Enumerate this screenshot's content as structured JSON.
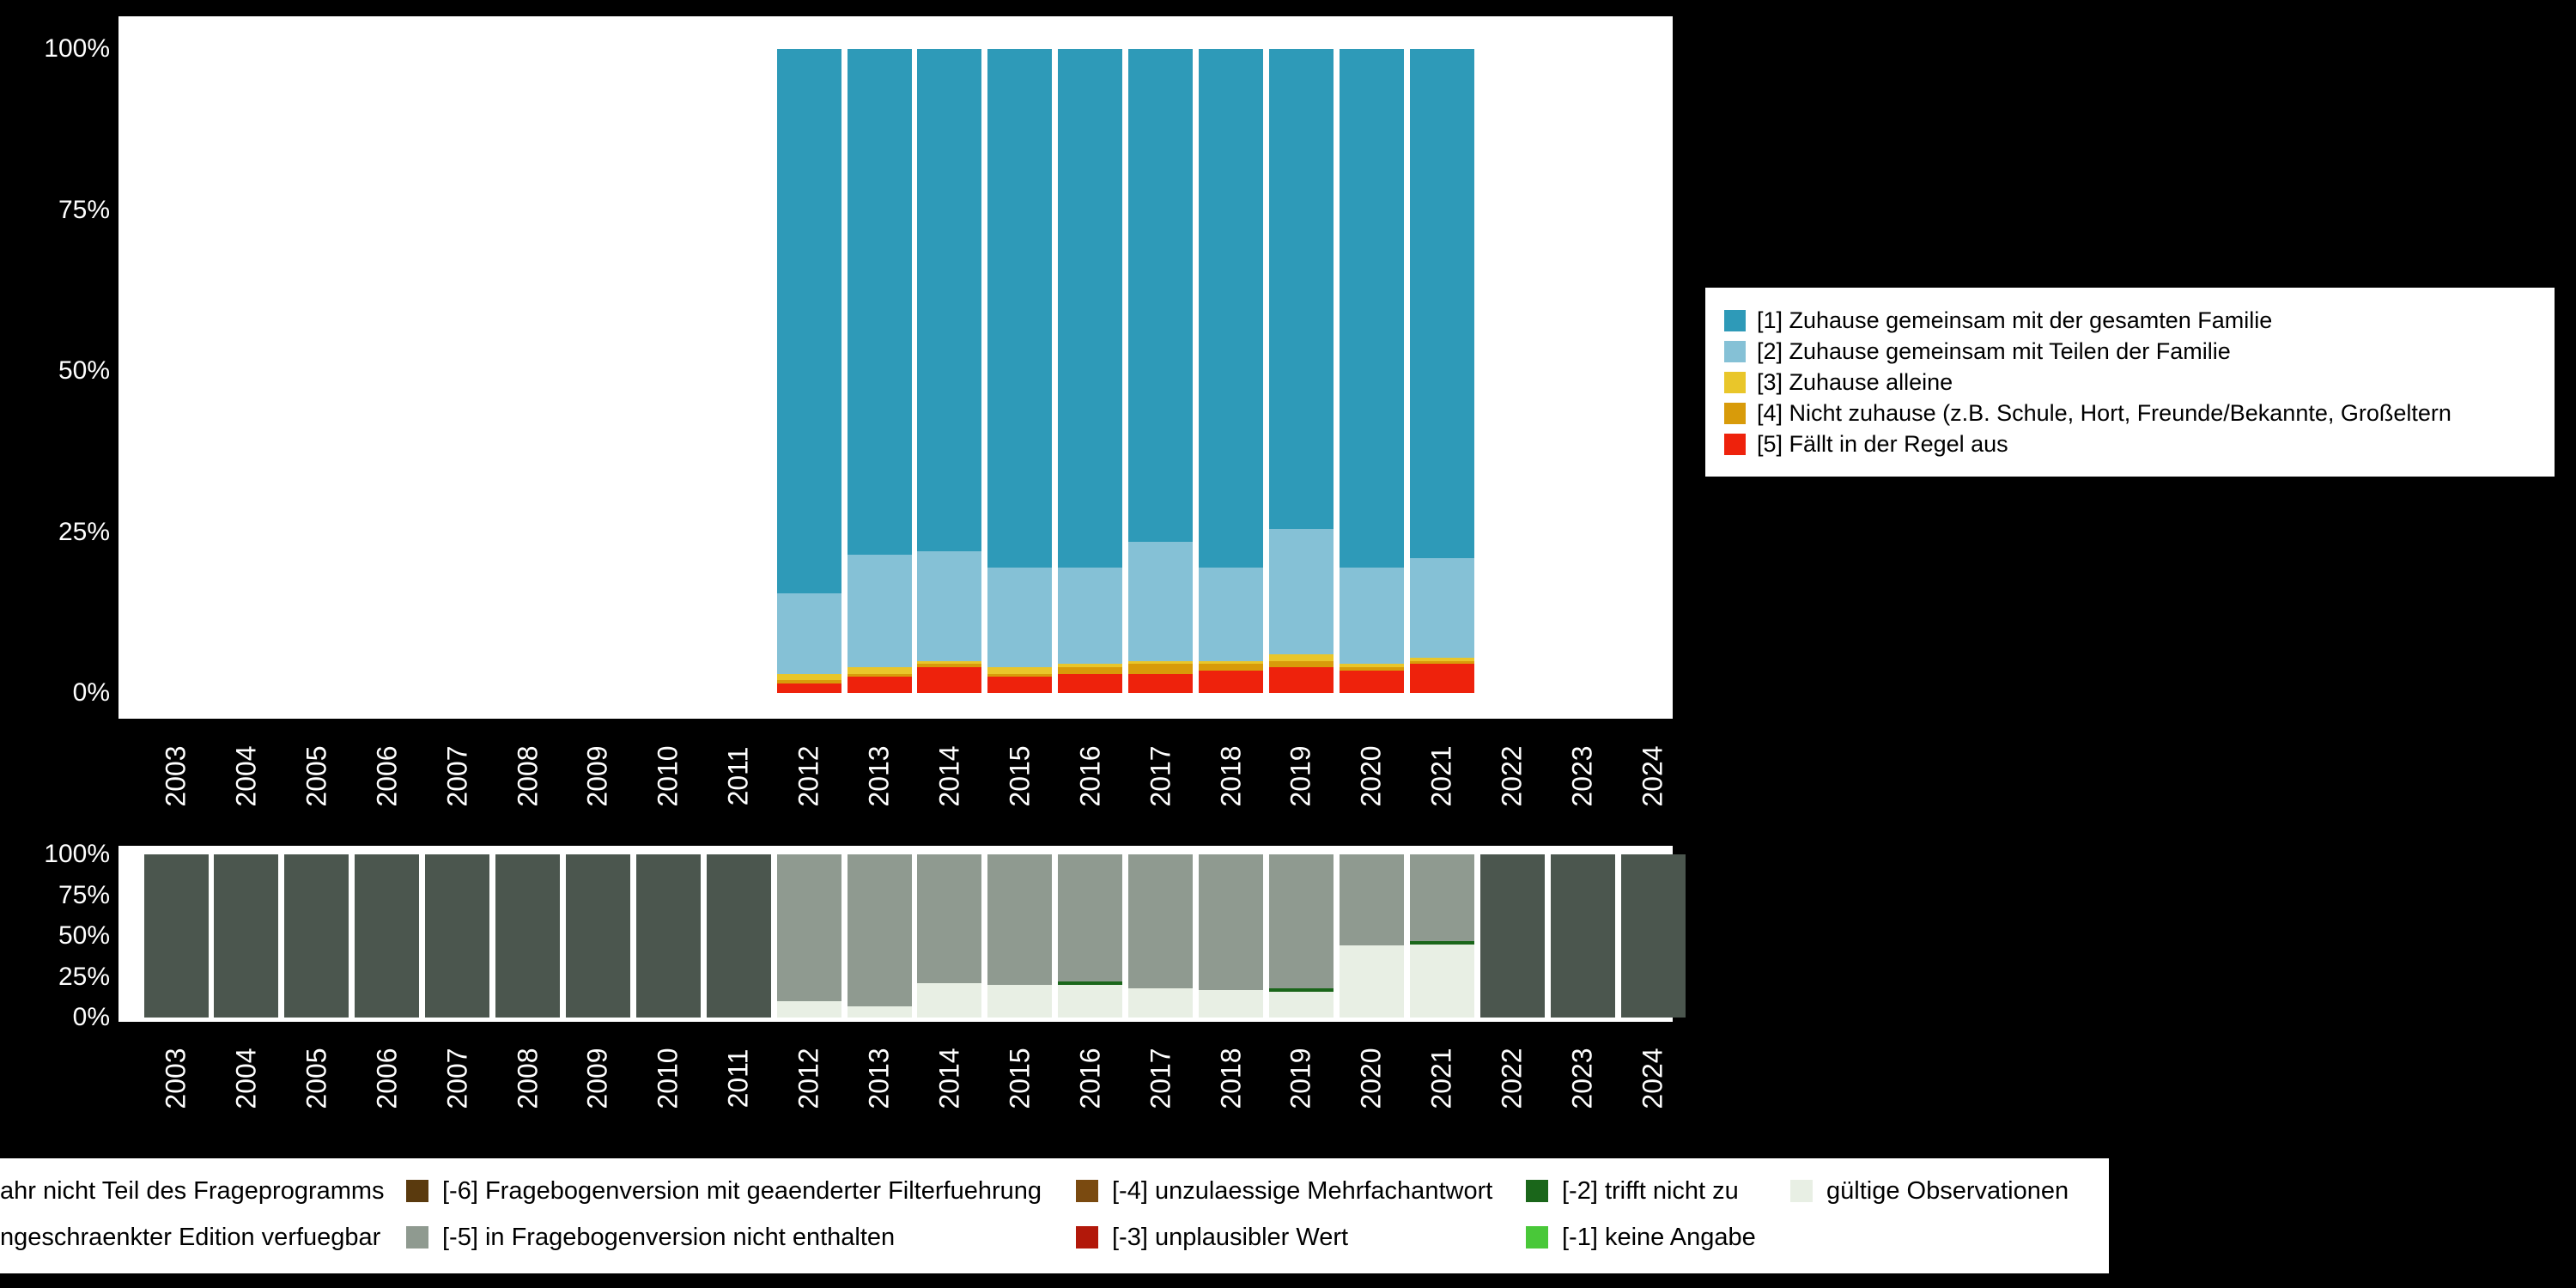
{
  "page": {
    "background": "#000000",
    "panel_background": "#ffffff",
    "axis_text_color": "#ffffff"
  },
  "chart_data": [
    {
      "type": "bar",
      "stacked": true,
      "title": "",
      "xlabel": "",
      "ylabel": "",
      "unit": "%",
      "ylim": [
        0,
        100
      ],
      "grid": false,
      "legend_position": "right",
      "y_tick_labels": [
        "0%",
        "25%",
        "50%",
        "75%",
        "100%"
      ],
      "x": [
        "2003",
        "2004",
        "2005",
        "2006",
        "2007",
        "2008",
        "2009",
        "2010",
        "2011",
        "2012",
        "2013",
        "2014",
        "2015",
        "2016",
        "2017",
        "2018",
        "2019",
        "2020",
        "2021",
        "2022",
        "2023",
        "2024"
      ],
      "stack_order": "bottom_to_top",
      "series": [
        {
          "name": "[5] Fällt in der Regel aus",
          "color": "#ee220c",
          "values": [
            0,
            0,
            0,
            0,
            0,
            0,
            0,
            0,
            0,
            1.5,
            2.5,
            4,
            2.5,
            3,
            3,
            3.5,
            4,
            3.5,
            4.5,
            0,
            0,
            0
          ]
        },
        {
          "name": "[4] Nicht zuhause (z.B. Schule, Hort, Freunde/Bekannte, Großeltern",
          "color": "#d89b0a",
          "values": [
            0,
            0,
            0,
            0,
            0,
            0,
            0,
            0,
            0,
            0.5,
            0.5,
            0.5,
            0.5,
            1,
            1.5,
            1,
            1,
            0.5,
            0.5,
            0,
            0,
            0
          ]
        },
        {
          "name": "[3] Zuhause alleine",
          "color": "#e9c62a",
          "values": [
            0,
            0,
            0,
            0,
            0,
            0,
            0,
            0,
            0,
            1,
            1,
            0.5,
            1,
            0.5,
            0.5,
            0.5,
            1,
            0.5,
            0.5,
            0,
            0,
            0
          ]
        },
        {
          "name": "[2] Zuhause gemeinsam mit Teilen der Familie",
          "color": "#85c1d6",
          "values": [
            0,
            0,
            0,
            0,
            0,
            0,
            0,
            0,
            0,
            12.5,
            17.5,
            17,
            15.5,
            15,
            18.5,
            14.5,
            19.5,
            15,
            15.5,
            0,
            0,
            0
          ]
        },
        {
          "name": "[1] Zuhause gemeinsam mit der gesamten Familie",
          "color": "#2e9ab8",
          "values": [
            0,
            0,
            0,
            0,
            0,
            0,
            0,
            0,
            0,
            84.5,
            78.5,
            78,
            80.5,
            80.5,
            76.5,
            80.5,
            74.5,
            80.5,
            79,
            0,
            0,
            0
          ]
        }
      ]
    },
    {
      "type": "bar",
      "stacked": true,
      "title": "",
      "xlabel": "",
      "ylabel": "",
      "unit": "%",
      "ylim": [
        0,
        100
      ],
      "grid": false,
      "legend_position": "bottom",
      "y_tick_labels": [
        "0%",
        "25%",
        "50%",
        "75%",
        "100%"
      ],
      "x": [
        "2003",
        "2004",
        "2005",
        "2006",
        "2007",
        "2008",
        "2009",
        "2010",
        "2011",
        "2012",
        "2013",
        "2014",
        "2015",
        "2016",
        "2017",
        "2018",
        "2019",
        "2020",
        "2021",
        "2022",
        "2023",
        "2024"
      ],
      "stack_order": "bottom_to_top",
      "series": [
        {
          "name": "gültige Observationen",
          "color": "#e8efe4",
          "values": [
            0,
            0,
            0,
            0,
            0,
            0,
            0,
            0,
            0,
            10,
            7,
            21,
            20,
            20,
            18,
            17,
            16,
            44,
            45,
            0,
            0,
            0
          ]
        },
        {
          "name": "[-2] trifft nicht zu",
          "color": "#1a661a",
          "values": [
            0,
            0,
            0,
            0,
            0,
            0,
            0,
            0,
            0,
            0,
            0,
            0,
            0,
            2,
            0,
            0,
            2,
            0,
            2,
            0,
            0,
            0
          ]
        },
        {
          "name": "[-5] in Fragebogenversion nicht enthalten",
          "color": "#8f9a90",
          "values": [
            0,
            0,
            0,
            0,
            0,
            0,
            0,
            0,
            0,
            90,
            93,
            79,
            80,
            78,
            82,
            83,
            82,
            56,
            53,
            0,
            0,
            0
          ]
        },
        {
          "name": "ahr nicht Teil des Frageprogramms",
          "color": "#4b564e",
          "values": [
            100,
            100,
            100,
            100,
            100,
            100,
            100,
            100,
            100,
            0,
            0,
            0,
            0,
            0,
            0,
            0,
            0,
            0,
            0,
            100,
            100,
            100
          ]
        }
      ]
    }
  ],
  "top_legend": {
    "items": [
      {
        "label": "[1] Zuhause gemeinsam mit der gesamten Familie",
        "color": "#2e9ab8"
      },
      {
        "label": "[2] Zuhause gemeinsam mit Teilen der Familie",
        "color": "#85c1d6"
      },
      {
        "label": "[3] Zuhause alleine",
        "color": "#e9c62a"
      },
      {
        "label": "[4] Nicht zuhause (z.B. Schule, Hort, Freunde/Bekannte, Großeltern",
        "color": "#d89b0a"
      },
      {
        "label": "[5] Fällt in der Regel aus",
        "color": "#ee220c"
      }
    ]
  },
  "bottom_legend": {
    "columns": [
      {
        "rows": [
          {
            "label": "ahr nicht Teil des Frageprogramms",
            "color": null
          },
          {
            "label": "ngeschraenkter Edition verfuegbar",
            "color": null
          }
        ]
      },
      {
        "rows": [
          {
            "label": "[-6] Fragebogenversion mit geaenderter Filterfuehrung",
            "color": "#5a3a0e"
          },
          {
            "label": "[-5] in Fragebogenversion nicht enthalten",
            "color": "#8f9a90"
          }
        ]
      },
      {
        "rows": [
          {
            "label": "[-4] unzulaessige Mehrfachantwort",
            "color": "#7a4a10"
          },
          {
            "label": "[-3] unplausibler Wert",
            "color": "#b2180a"
          }
        ]
      },
      {
        "rows": [
          {
            "label": "[-2] trifft nicht zu",
            "color": "#1a661a"
          },
          {
            "label": "[-1] keine Angabe",
            "color": "#49c839"
          }
        ]
      },
      {
        "rows": [
          {
            "label": "gültige Observationen",
            "color": "#e8efe4"
          }
        ]
      }
    ]
  }
}
